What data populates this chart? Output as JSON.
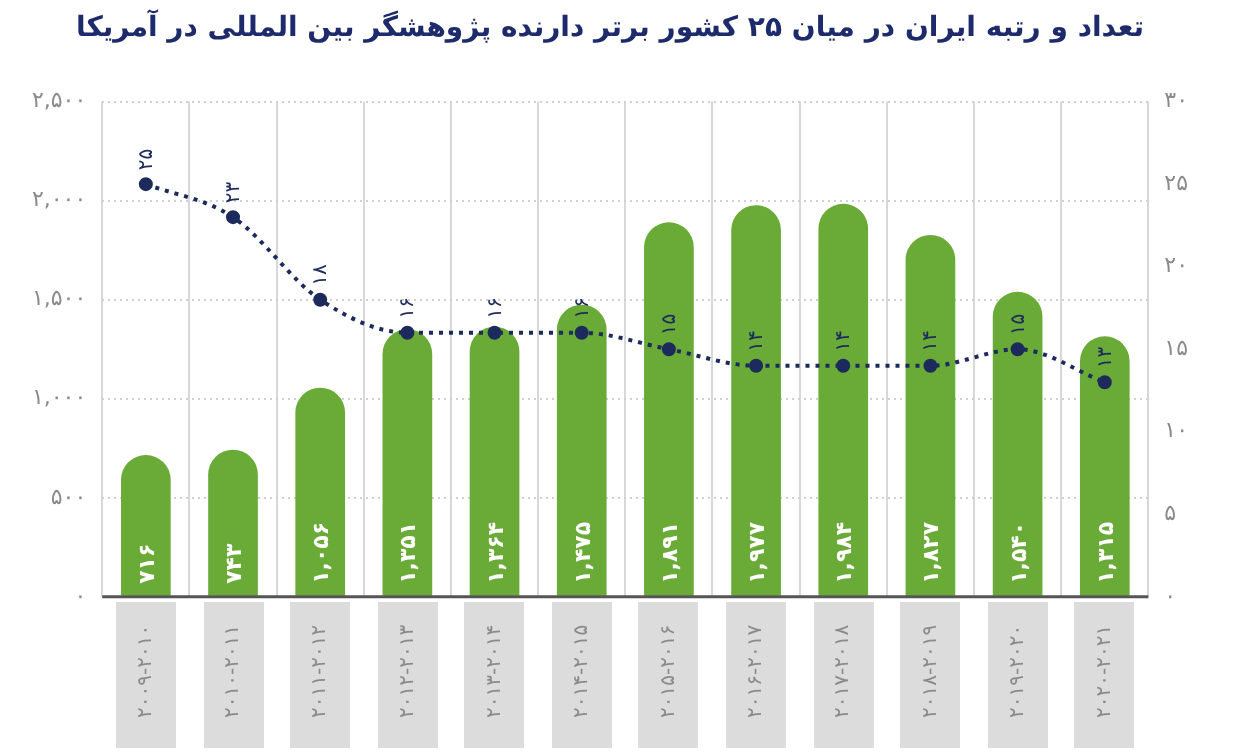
{
  "chart_data": {
    "type": "bar",
    "title": "تعداد و رتبه ایران در میان ۲۵ کشور برتر دارنده پژوهشگر بین المللی در آمریکا",
    "categories": [
      "۲۰۰۹-۲۰۱۰",
      "۲۰۱۰-۲۰۱۱",
      "۲۰۱۱-۲۰۱۲",
      "۲۰۱۲-۲۰۱۳",
      "۲۰۱۳-۲۰۱۴",
      "۲۰۱۴-۲۰۱۵",
      "۲۰۱۵-۲۰۱۶",
      "۲۰۱۶-۲۰۱۷",
      "۲۰۱۷-۲۰۱۸",
      "۲۰۱۸-۲۰۱۹",
      "۲۰۱۹-۲۰۲۰",
      "۲۰۲۰-۲۰۲۱"
    ],
    "series": [
      {
        "color": "#6aab38",
        "values": [
          716,
          743,
          1056,
          1351,
          1364,
          1475,
          1891,
          1977,
          1984,
          1827,
          1540,
          1315
        ],
        "value_labels": [
          "۷۱۶",
          "۷۴۳",
          "۱,۰۵۶",
          "۱,۳۵۱",
          "۱,۳۶۴",
          "۱,۴۷۵",
          "۱,۸۹۱",
          "۱,۹۷۷",
          "۱,۹۸۴",
          "۱,۸۲۷",
          "۱,۵۴۰",
          "۱,۳۱۵"
        ]
      },
      {
        "type": "line",
        "axis": "y2",
        "color": "#1c2a5c",
        "marker": "circle",
        "line_style": "dotted",
        "values": [
          25,
          23,
          18,
          16,
          16,
          16,
          15,
          14,
          14,
          14,
          15,
          13
        ],
        "value_labels": [
          "۲۵",
          "۲۳",
          "۱۸",
          "۱۶",
          "۱۶",
          "۱۶",
          "۱۵",
          "۱۴",
          "۱۴",
          "۱۴",
          "۱۵",
          "۱۳"
        ]
      }
    ],
    "ylim": [
      0,
      2500
    ],
    "yticks": [
      {
        "value": 0,
        "label": "۰"
      },
      {
        "value": 500,
        "label": "۵۰۰"
      },
      {
        "value": 1000,
        "label": "۱,۰۰۰"
      },
      {
        "value": 1500,
        "label": "۱,۵۰۰"
      },
      {
        "value": 2000,
        "label": "۲,۰۰۰"
      },
      {
        "value": 2500,
        "label": "۲,۵۰۰"
      }
    ],
    "y2lim": [
      0,
      30
    ],
    "y2ticks": [
      {
        "value": 0,
        "label": "۰"
      },
      {
        "value": 5,
        "label": "۵"
      },
      {
        "value": 10,
        "label": "۱۰"
      },
      {
        "value": 15,
        "label": "۱۵"
      },
      {
        "value": 20,
        "label": "۲۰"
      },
      {
        "value": 25,
        "label": "۲۵"
      },
      {
        "value": 30,
        "label": "۳۰"
      }
    ],
    "grid": true,
    "legend": false
  }
}
